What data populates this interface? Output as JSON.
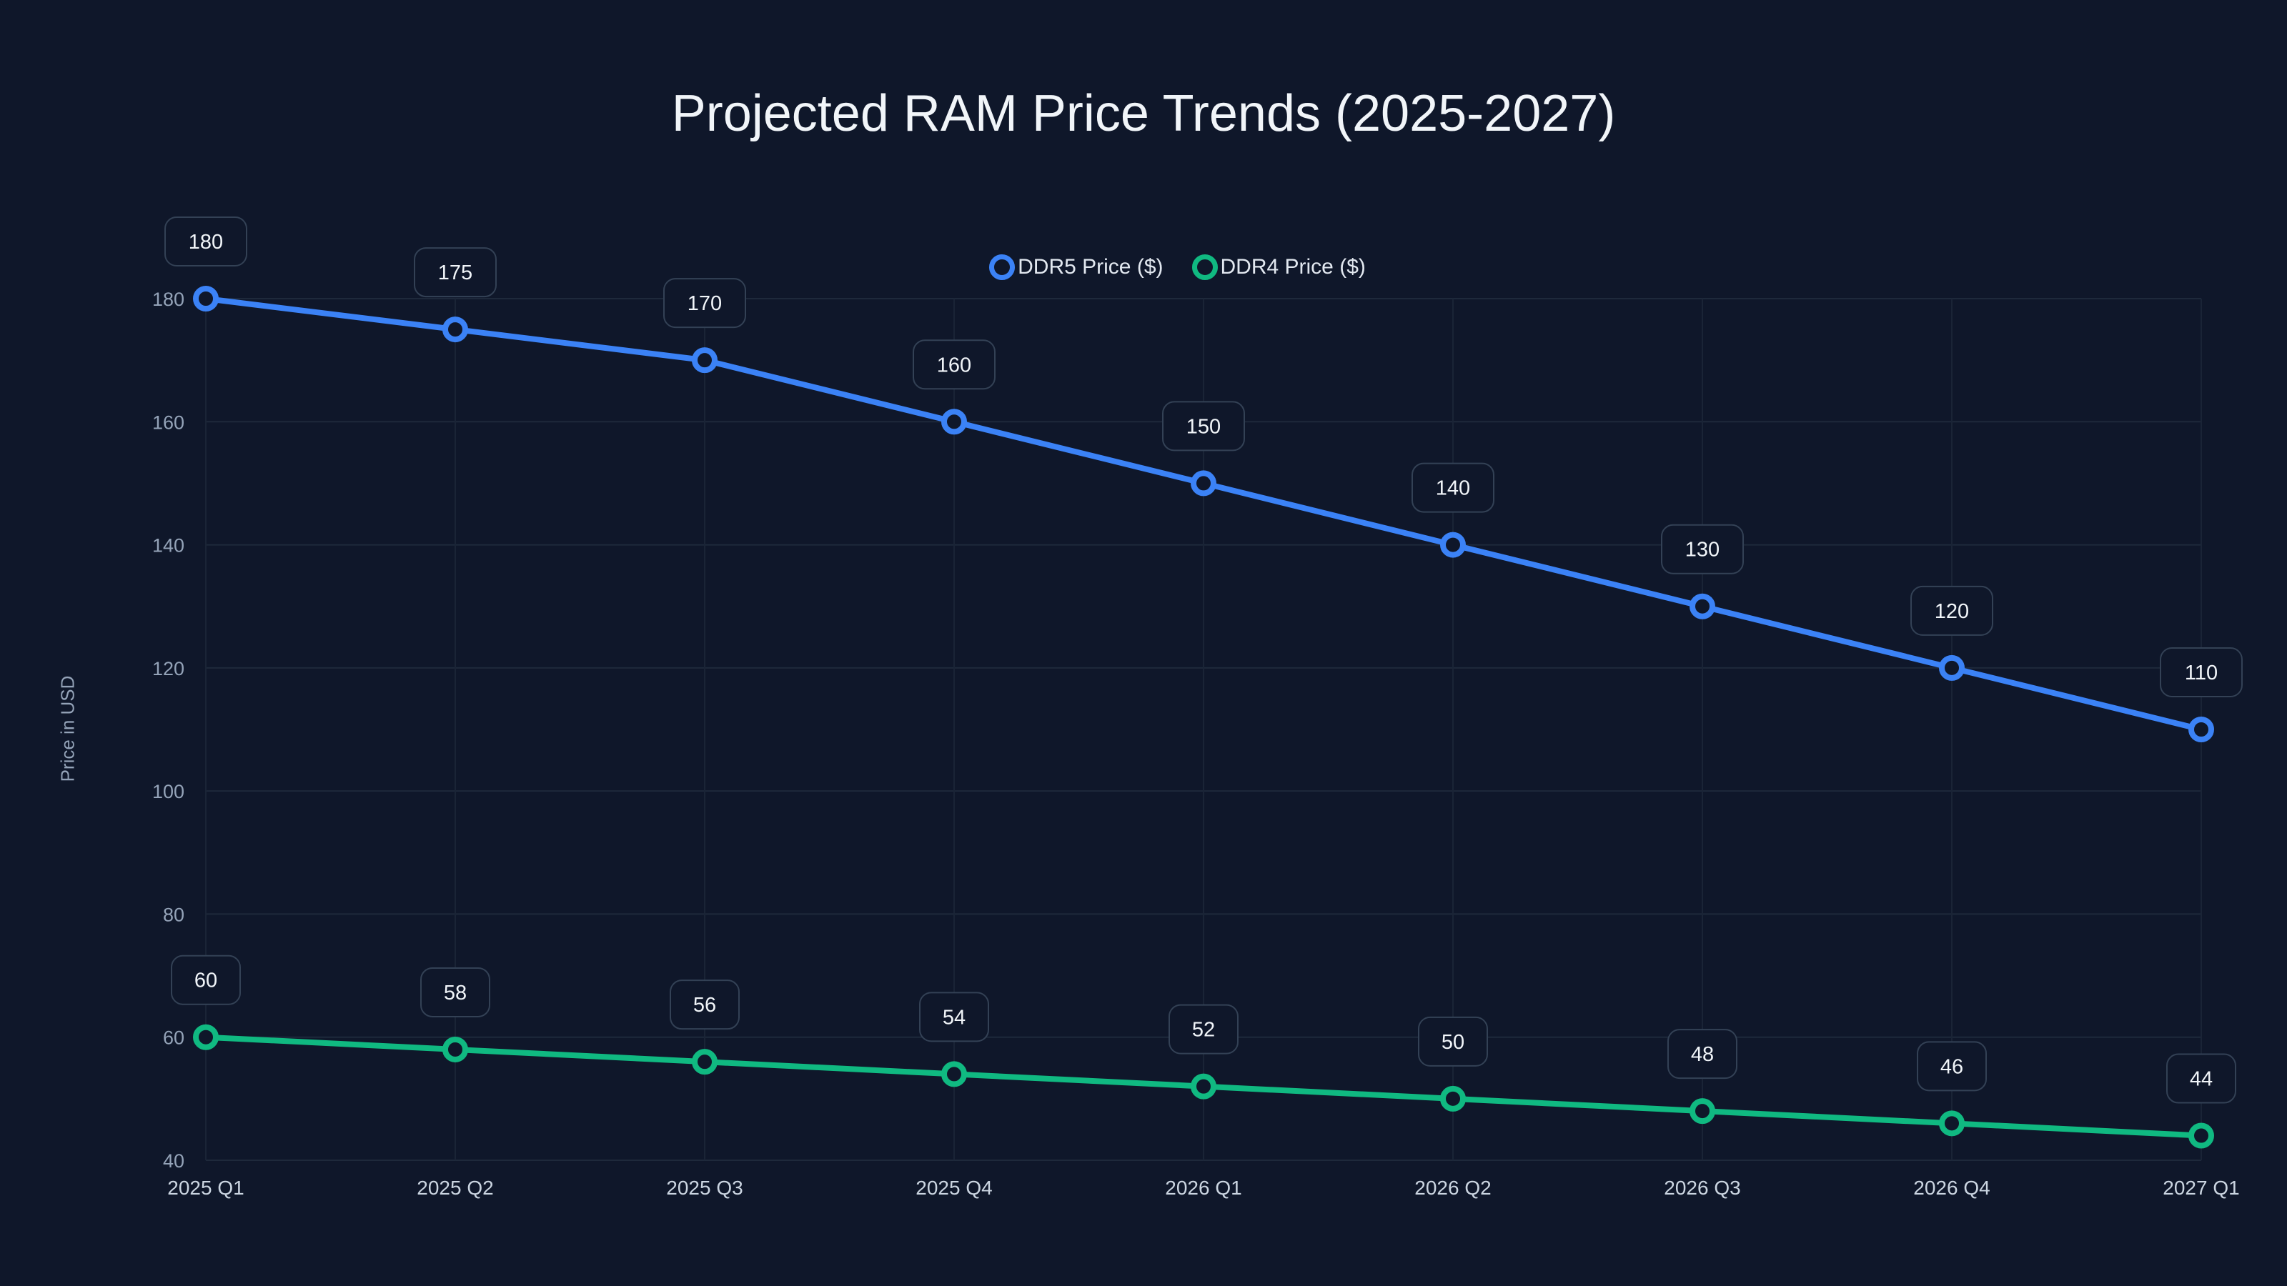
{
  "chart_data": {
    "type": "line",
    "title": "Projected RAM Price Trends (2025-2027)",
    "xlabel": "",
    "ylabel": "Price in USD",
    "categories": [
      "2025 Q1",
      "2025 Q2",
      "2025 Q3",
      "2025 Q4",
      "2026 Q1",
      "2026 Q2",
      "2026 Q3",
      "2026 Q4",
      "2027 Q1"
    ],
    "ylim": [
      40,
      180
    ],
    "yticks": [
      40,
      60,
      80,
      100,
      120,
      140,
      160,
      180
    ],
    "grid": true,
    "legend_position": "top-center",
    "series": [
      {
        "name": "DDR5 Price ($)",
        "color": "#3b82f6",
        "values": [
          180,
          175,
          170,
          160,
          150,
          140,
          130,
          120,
          110
        ]
      },
      {
        "name": "DDR4 Price ($)",
        "color": "#10b981",
        "values": [
          60,
          58,
          56,
          54,
          52,
          50,
          48,
          46,
          44
        ]
      }
    ]
  }
}
